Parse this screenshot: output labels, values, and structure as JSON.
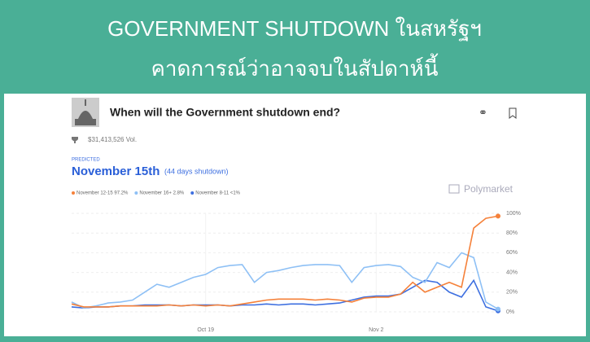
{
  "header": {
    "line1": "GOVERNMENT SHUTDOWN ในสหรัฐฯ",
    "line2": "คาดการณ์ว่าอาจจบในสัปดาห์นี้"
  },
  "market": {
    "question": "When will the Government shutdown end?",
    "volume": "$31,413,526 Vol.",
    "predicted_label": "PREDICTED",
    "predicted": "November 15th",
    "predicted_note": "(44 days shutdown)",
    "brand": "Polymarket"
  },
  "chart_data": {
    "type": "line",
    "categories": [
      null,
      null,
      null,
      null,
      null,
      null,
      null,
      null,
      null,
      null,
      null,
      "Oct 19",
      null,
      null,
      null,
      null,
      null,
      null,
      null,
      null,
      null,
      null,
      null,
      null,
      null,
      "Nov 2",
      null,
      null,
      null,
      null,
      null,
      null,
      null,
      null,
      null,
      null
    ],
    "series": [
      {
        "name": "November 12-15 97.2%",
        "color": "#f5813a",
        "values": [
          8,
          5,
          5,
          5,
          6,
          6,
          6,
          6,
          7,
          6,
          7,
          6,
          7,
          6,
          8,
          10,
          12,
          13,
          13,
          13,
          12,
          13,
          12,
          10,
          14,
          15,
          15,
          18,
          30,
          20,
          25,
          30,
          25,
          85,
          95,
          97.2
        ]
      },
      {
        "name": "November 16+ 2.8%",
        "color": "#8ec0f5",
        "values": [
          10,
          4,
          6,
          9,
          10,
          12,
          20,
          28,
          25,
          30,
          35,
          38,
          45,
          47,
          48,
          30,
          40,
          42,
          45,
          47,
          48,
          48,
          47,
          30,
          45,
          47,
          48,
          46,
          35,
          30,
          50,
          45,
          60,
          55,
          10,
          2.8
        ]
      },
      {
        "name": "November 8-11 <1%",
        "color": "#3d6fe0",
        "values": [
          5,
          4,
          5,
          5,
          6,
          6,
          7,
          7,
          7,
          6,
          7,
          7,
          7,
          6,
          7,
          7,
          8,
          7,
          8,
          8,
          7,
          8,
          9,
          12,
          15,
          16,
          16,
          18,
          25,
          32,
          30,
          20,
          15,
          32,
          5,
          1
        ]
      }
    ],
    "ylim": [
      0,
      100
    ],
    "yticks": [
      {
        "value": 0,
        "label": "0%"
      },
      {
        "value": 20,
        "label": "20%"
      },
      {
        "value": 40,
        "label": "40%"
      },
      {
        "value": 60,
        "label": "60%"
      },
      {
        "value": 80,
        "label": "80%"
      },
      {
        "value": 100,
        "label": "100%"
      }
    ],
    "grid": true
  }
}
